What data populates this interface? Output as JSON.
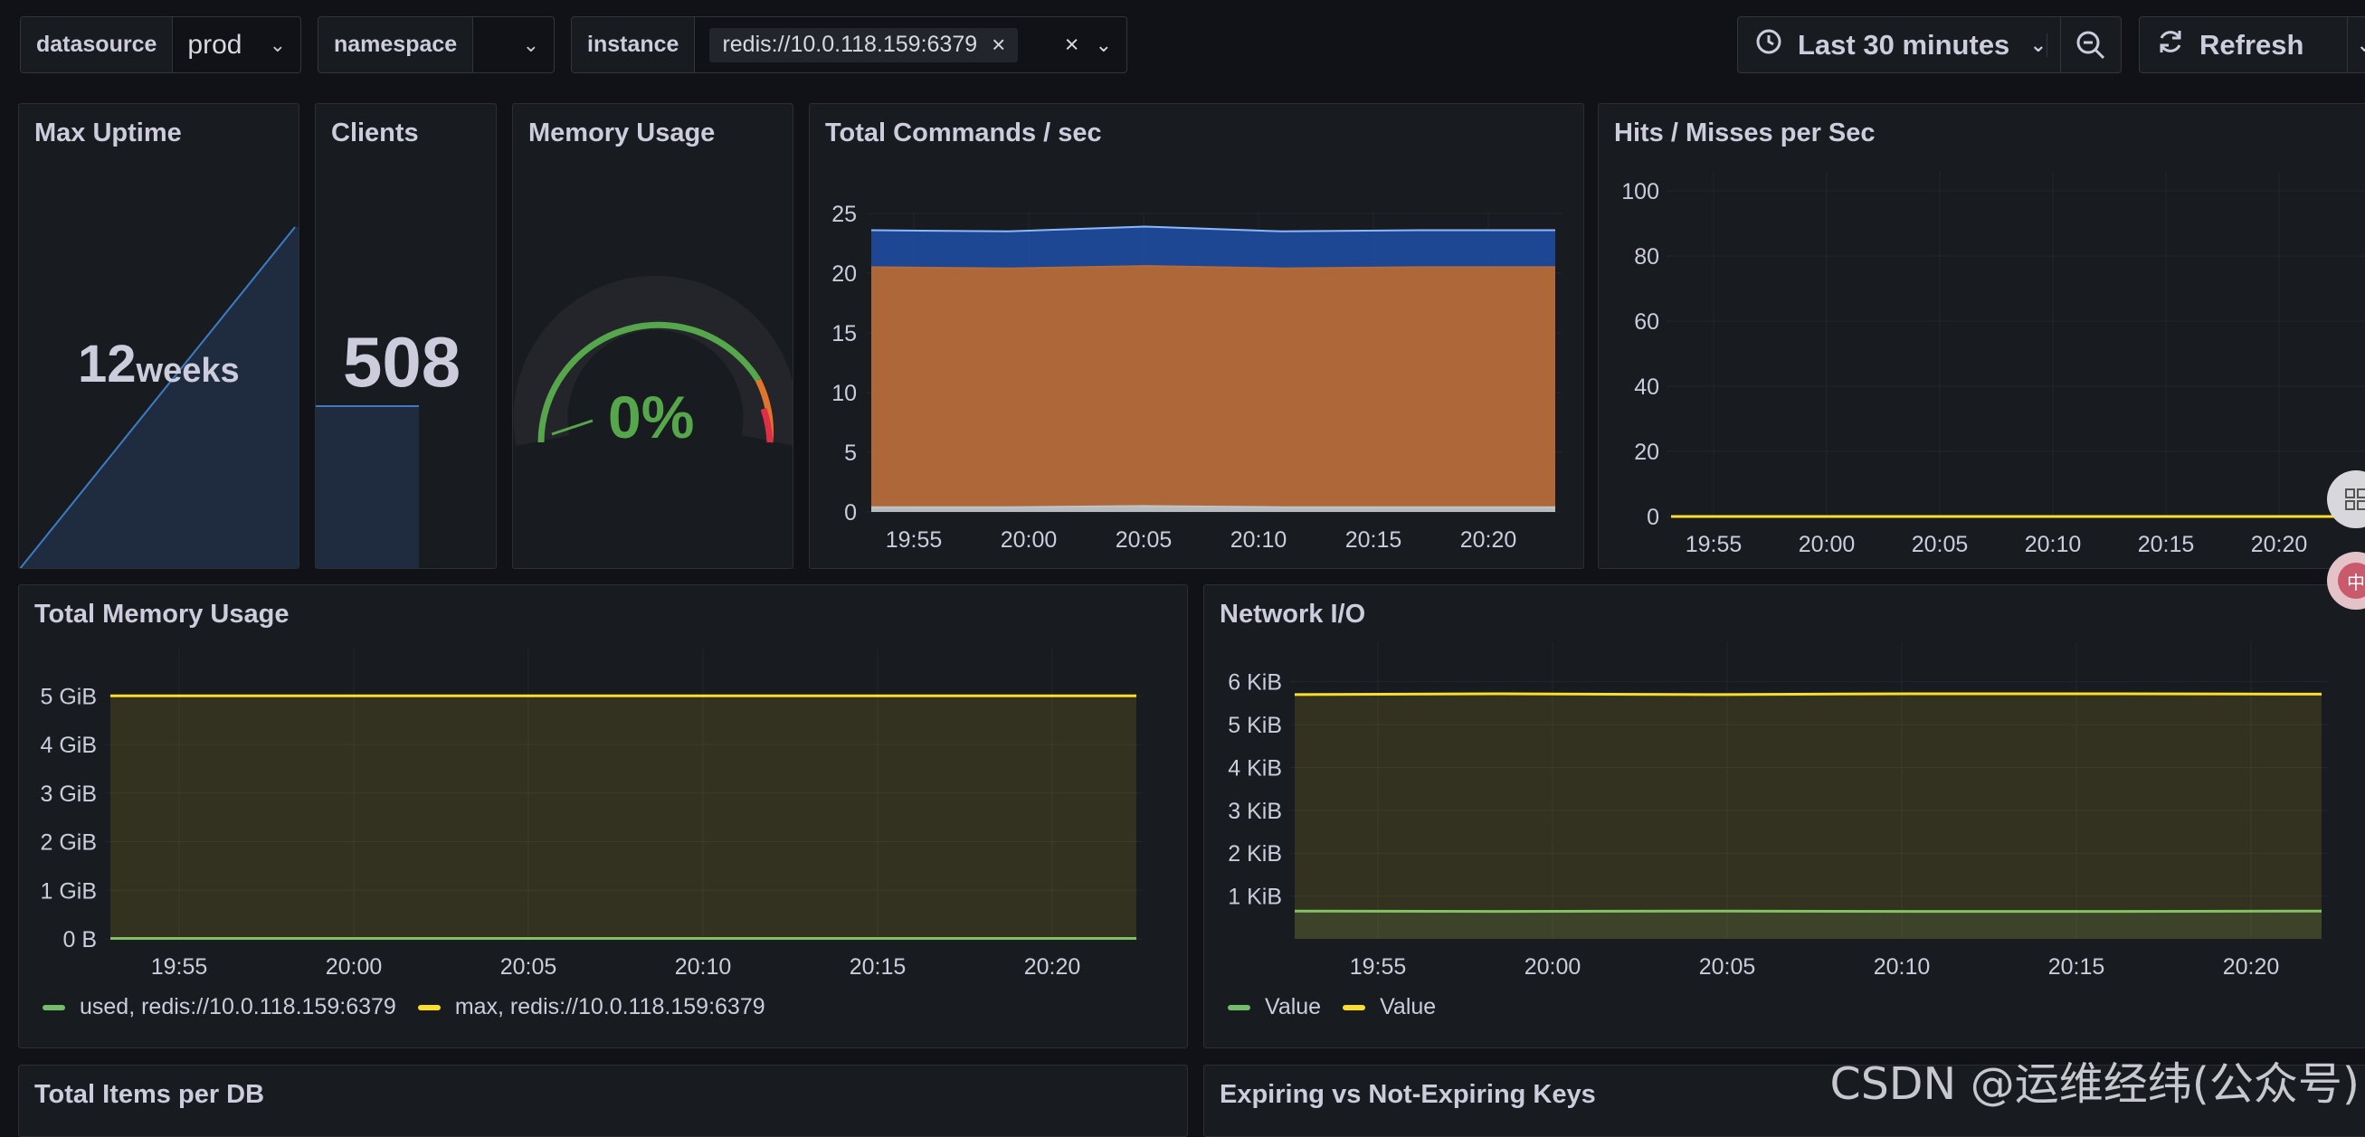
{
  "variables": {
    "datasource": {
      "label": "datasource",
      "value": "prod"
    },
    "namespace": {
      "label": "namespace",
      "value": ""
    },
    "instance": {
      "label": "instance",
      "value": "redis://10.0.118.159:6379"
    }
  },
  "toolbar": {
    "time_range": "Last 30 minutes",
    "refresh_label": "Refresh"
  },
  "panels": {
    "max_uptime": {
      "title": "Max Uptime",
      "value": "12",
      "unit": "weeks"
    },
    "clients": {
      "title": "Clients",
      "value": "508"
    },
    "memory_usage": {
      "title": "Memory Usage",
      "value": "0%",
      "percent": 0
    },
    "total_commands": {
      "title": "Total Commands / sec"
    },
    "hits_misses": {
      "title": "Hits / Misses per Sec"
    },
    "total_memory": {
      "title": "Total Memory Usage",
      "legend": [
        {
          "label": "used, redis://10.0.118.159:6379",
          "color": "#73bf69"
        },
        {
          "label": "max, redis://10.0.118.159:6379",
          "color": "#fade2a"
        }
      ]
    },
    "network_io": {
      "title": "Network I/O",
      "legend": [
        {
          "label": "Value",
          "color": "#73bf69"
        },
        {
          "label": "Value",
          "color": "#fade2a"
        }
      ]
    },
    "total_items": {
      "title": "Total Items per DB"
    },
    "expiring_keys": {
      "title": "Expiring vs Not-Expiring Keys"
    }
  },
  "chart_data": [
    {
      "type": "area",
      "panel": "Total Commands / sec",
      "x": [
        "19:55",
        "20:00",
        "20:05",
        "20:10",
        "20:15",
        "20:20"
      ],
      "yticks": [
        "0",
        "5",
        "10",
        "15",
        "20",
        "25"
      ],
      "ylim": [
        0,
        25
      ],
      "stacked": true,
      "series": [
        {
          "color": "#c0c3c8",
          "values": [
            0.4,
            0.4,
            0.5,
            0.4,
            0.4,
            0.4
          ]
        },
        {
          "color": "#b66b3a",
          "values": [
            20.5,
            20.4,
            20.6,
            20.4,
            20.5,
            20.5
          ]
        },
        {
          "color": "#1f4a9a",
          "values": [
            23.6,
            23.5,
            23.9,
            23.5,
            23.6,
            23.6
          ]
        }
      ]
    },
    {
      "type": "line",
      "panel": "Hits / Misses per Sec",
      "x": [
        "19:55",
        "20:00",
        "20:05",
        "20:10",
        "20:15",
        "20:20"
      ],
      "yticks": [
        "0",
        "20",
        "40",
        "60",
        "80",
        "100"
      ],
      "ylim": [
        0,
        100
      ],
      "series": [
        {
          "color": "#fade2a",
          "values": [
            0,
            0,
            0,
            0,
            0,
            0
          ]
        }
      ]
    },
    {
      "type": "area",
      "panel": "Total Memory Usage",
      "x": [
        "19:55",
        "20:00",
        "20:05",
        "20:10",
        "20:15",
        "20:20"
      ],
      "yticks": [
        "0 B",
        "1 GiB",
        "2 GiB",
        "3 GiB",
        "4 GiB",
        "5 GiB"
      ],
      "ylim": [
        0,
        5
      ],
      "series": [
        {
          "name": "used, redis://10.0.118.159:6379",
          "color": "#73bf69",
          "values": [
            0.01,
            0.01,
            0.01,
            0.01,
            0.01,
            0.01
          ]
        },
        {
          "name": "max, redis://10.0.118.159:6379",
          "color": "#fade2a",
          "values": [
            5,
            5,
            5,
            5,
            5,
            5
          ]
        }
      ]
    },
    {
      "type": "area",
      "panel": "Network I/O",
      "x": [
        "19:55",
        "20:00",
        "20:05",
        "20:10",
        "20:15",
        "20:20"
      ],
      "yticks": [
        "1 KiB",
        "2 KiB",
        "3 KiB",
        "4 KiB",
        "5 KiB",
        "6 KiB"
      ],
      "ylim": [
        0,
        6.25
      ],
      "series": [
        {
          "name": "Value",
          "color": "#73bf69",
          "values": [
            0.65,
            0.64,
            0.65,
            0.64,
            0.64,
            0.65
          ]
        },
        {
          "name": "Value",
          "color": "#fade2a",
          "values": [
            5.7,
            5.72,
            5.7,
            5.72,
            5.72,
            5.71
          ]
        }
      ]
    }
  ],
  "watermark": "CSDN @运维经纬(公众号)"
}
